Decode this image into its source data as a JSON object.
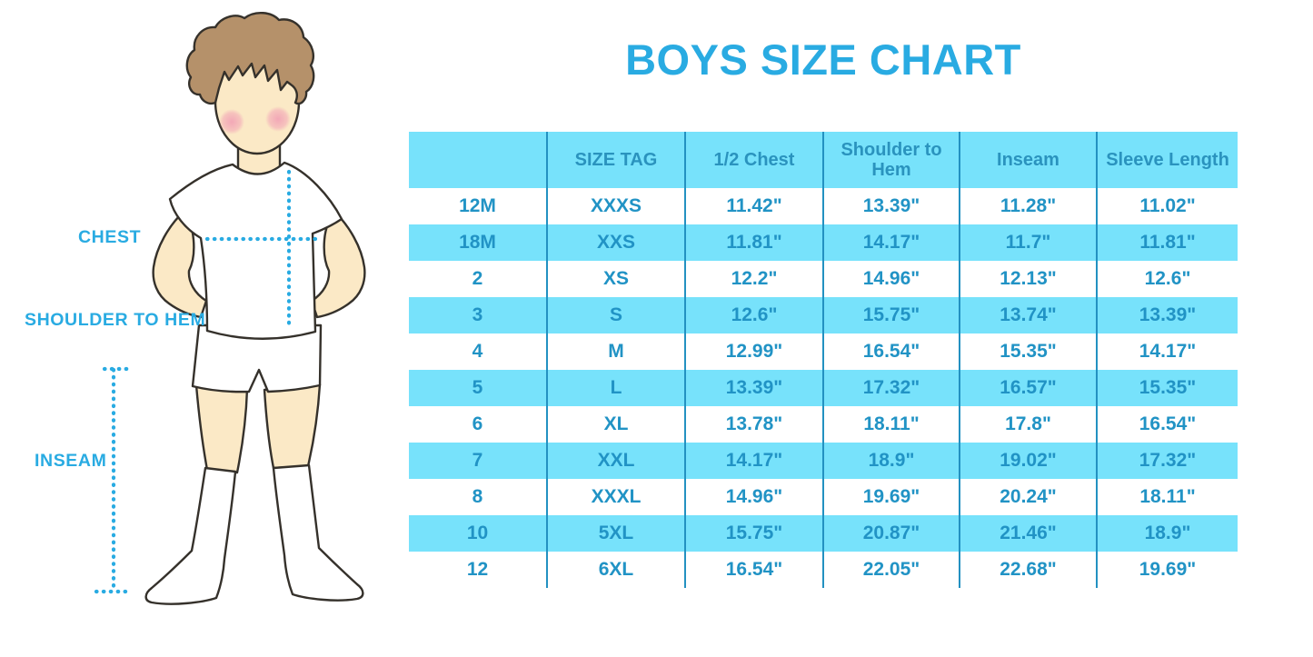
{
  "title": "BOYS SIZE CHART",
  "figure_labels": {
    "chest": "CHEST",
    "shoulder_to_hem": "SHOULDER TO HEM",
    "inseam": "INSEAM"
  },
  "chart_data": {
    "type": "table",
    "title": "BOYS SIZE CHART",
    "headers": [
      "",
      "SIZE TAG",
      "1/2 Chest",
      "Shoulder to Hem",
      "Inseam",
      "Sleeve Length"
    ],
    "rows": [
      [
        "12M",
        "XXXS",
        "11.42\"",
        "13.39\"",
        "11.28\"",
        "11.02\""
      ],
      [
        "18M",
        "XXS",
        "11.81\"",
        "14.17\"",
        "11.7\"",
        "11.81\""
      ],
      [
        "2",
        "XS",
        "12.2\"",
        "14.96\"",
        "12.13\"",
        "12.6\""
      ],
      [
        "3",
        "S",
        "12.6\"",
        "15.75\"",
        "13.74\"",
        "13.39\""
      ],
      [
        "4",
        "M",
        "12.99\"",
        "16.54\"",
        "15.35\"",
        "14.17\""
      ],
      [
        "5",
        "L",
        "13.39\"",
        "17.32\"",
        "16.57\"",
        "15.35\""
      ],
      [
        "6",
        "XL",
        "13.78\"",
        "18.11\"",
        "17.8\"",
        "16.54\""
      ],
      [
        "7",
        "XXL",
        "14.17\"",
        "18.9\"",
        "19.02\"",
        "17.32\""
      ],
      [
        "8",
        "XXXL",
        "14.96\"",
        "19.69\"",
        "20.24\"",
        "18.11\""
      ],
      [
        "10",
        "5XL",
        "15.75\"",
        "20.87\"",
        "21.46\"",
        "18.9\""
      ],
      [
        "12",
        "6XL",
        "16.54\"",
        "22.05\"",
        "22.68\"",
        "19.69\""
      ]
    ],
    "layout_hints": {
      "row_striping": [
        "white",
        "cyan"
      ],
      "header_background": "cyan",
      "column_dividers": true
    }
  },
  "colors": {
    "accent_blue": "#29ABE2",
    "table_fill_cyan": "#77E2FB",
    "table_text_blue": "#2193C5",
    "divider_blue": "#2391C1",
    "hair_brown": "#B5916A",
    "skin": "#FBE9C6",
    "blush_pink": "#F2A4B6",
    "outline": "#35312B"
  }
}
